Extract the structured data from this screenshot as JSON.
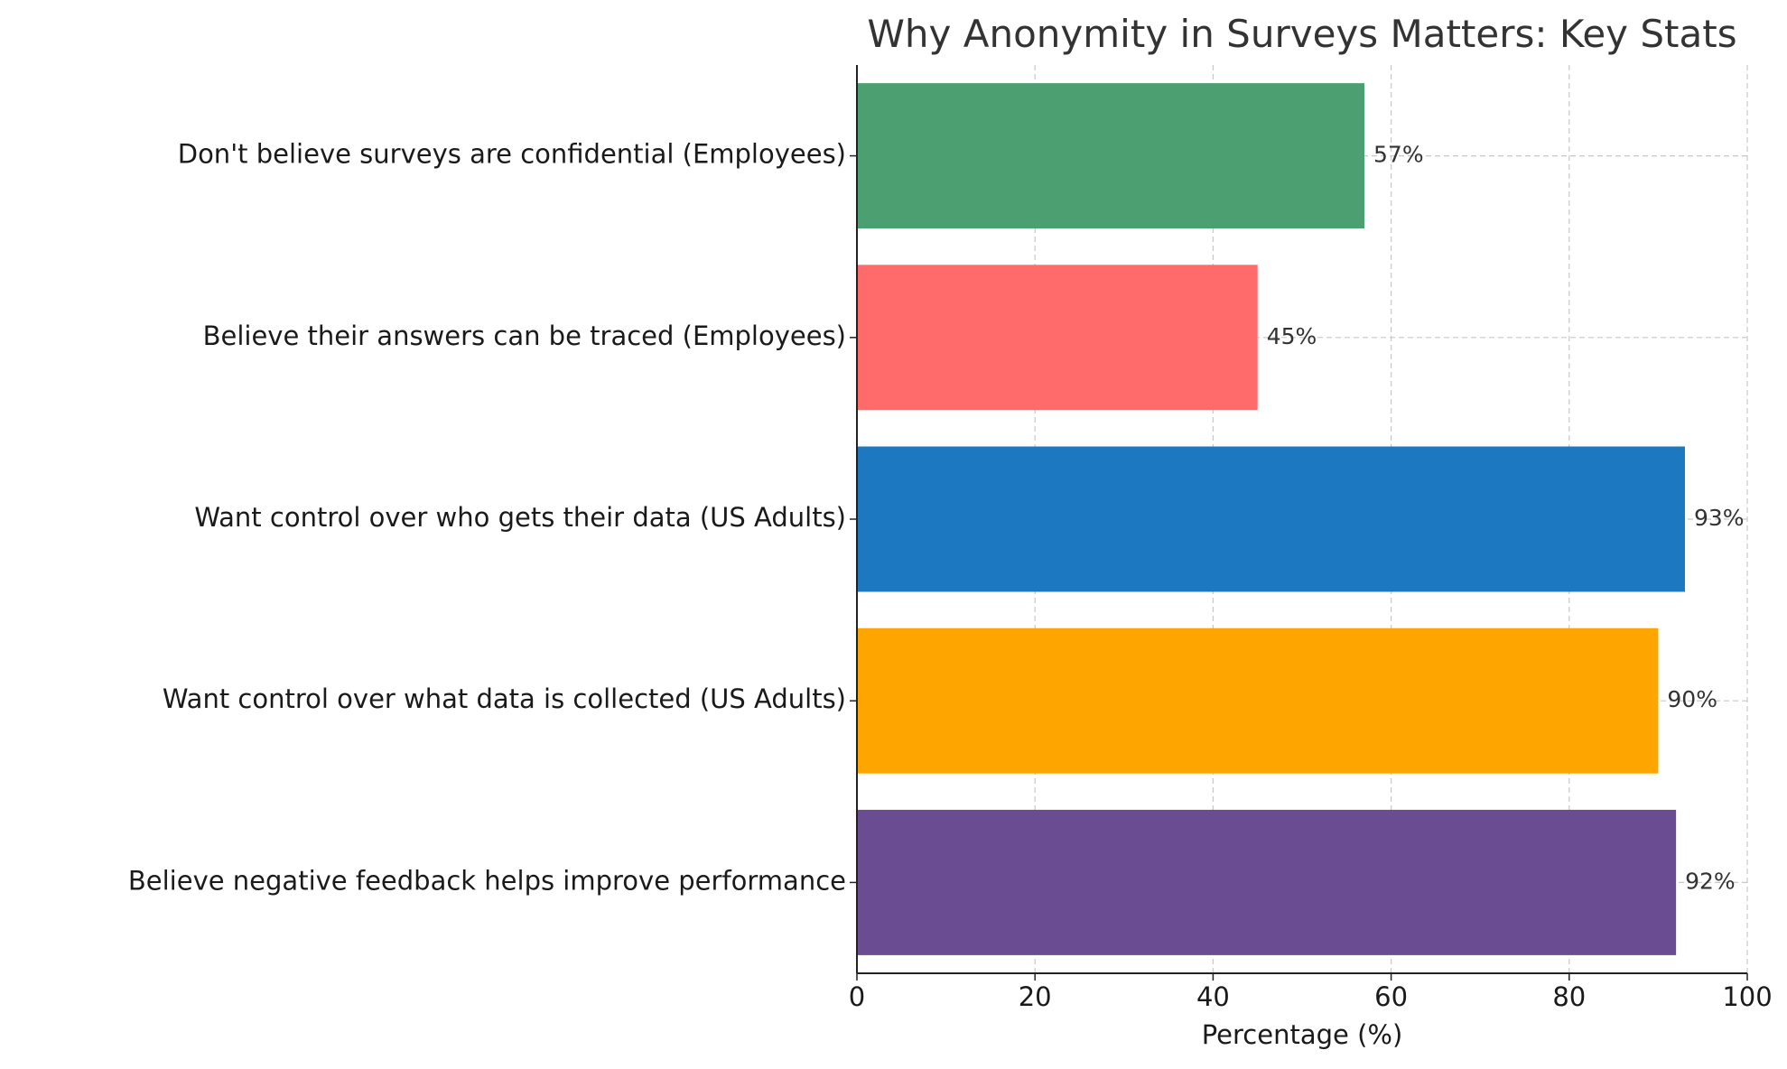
{
  "chart_data": {
    "type": "bar",
    "orientation": "horizontal",
    "title": "Why Anonymity in Surveys Matters: Key Stats",
    "xlabel": "Percentage (%)",
    "ylabel": "",
    "xlim": [
      0,
      100
    ],
    "xticks": [
      0,
      20,
      40,
      60,
      80,
      100
    ],
    "grid": true,
    "categories": [
      "Believe negative feedback helps improve performance",
      "Want control over what data is collected (US Adults)",
      "Want control over who gets their data (US Adults)",
      "Believe their answers can be traced (Employees)",
      "Don't believe surveys are confidential (Employees)"
    ],
    "values": [
      92,
      90,
      93,
      45,
      57
    ],
    "value_labels": [
      "92%",
      "90%",
      "93%",
      "45%",
      "57%"
    ],
    "colors": [
      "#6a4c93",
      "#ffa500",
      "#1c78c0",
      "#ff6b6b",
      "#4c9f70"
    ]
  }
}
